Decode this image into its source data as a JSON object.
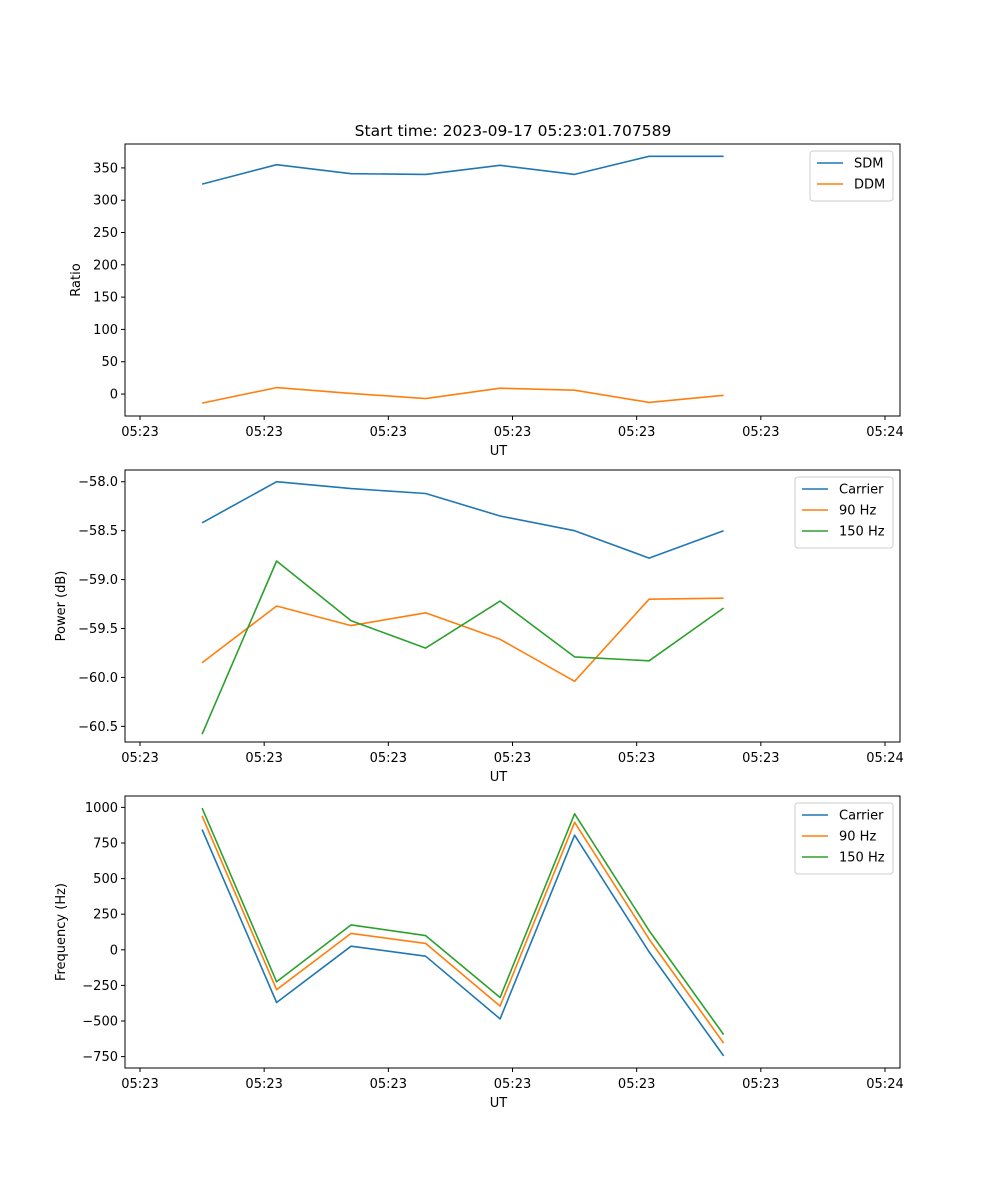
{
  "figure": {
    "title": "Start time: 2023-09-17 05:23:01.707589"
  },
  "colors": {
    "blue": "#1f77b4",
    "orange": "#ff7f0e",
    "green": "#2ca02c"
  },
  "chart_data": [
    {
      "type": "line",
      "ylabel": "Ratio",
      "xlabel": "UT",
      "x": [
        0.5,
        1.1,
        1.7,
        2.3,
        2.9,
        3.5,
        4.1,
        4.7
      ],
      "xlim": [
        0.0,
        6.0
      ],
      "xticks": [
        0,
        1,
        2,
        3,
        4,
        5,
        6
      ],
      "xtick_labels": [
        "05:23",
        "05:23",
        "05:23",
        "05:23",
        "05:23",
        "05:23",
        "05:24"
      ],
      "ylim": [
        -34,
        387
      ],
      "yticks": [
        0,
        50,
        100,
        150,
        200,
        250,
        300,
        350
      ],
      "ytick_labels": [
        "0",
        "50",
        "100",
        "150",
        "200",
        "250",
        "300",
        "350"
      ],
      "legend_position": "top-right",
      "series": [
        {
          "name": "SDM",
          "color": "#1f77b4",
          "values": [
            325,
            355,
            341,
            340,
            354,
            340,
            368,
            368
          ]
        },
        {
          "name": "DDM",
          "color": "#ff7f0e",
          "values": [
            -14,
            10,
            1,
            -7,
            9,
            6,
            -13,
            -2
          ]
        }
      ]
    },
    {
      "type": "line",
      "ylabel": "Power (dB)",
      "xlabel": "UT",
      "x": [
        0.5,
        1.1,
        1.7,
        2.3,
        2.9,
        3.5,
        4.1,
        4.7
      ],
      "xlim": [
        0.0,
        6.0
      ],
      "xticks": [
        0,
        1,
        2,
        3,
        4,
        5,
        6
      ],
      "xtick_labels": [
        "05:23",
        "05:23",
        "05:23",
        "05:23",
        "05:23",
        "05:23",
        "05:24"
      ],
      "ylim": [
        -60.66,
        -57.88
      ],
      "yticks": [
        -60.5,
        -60.0,
        -59.5,
        -59.0,
        -58.5,
        -58.0
      ],
      "ytick_labels": [
        "−60.5",
        "−60.0",
        "−59.5",
        "−59.0",
        "−58.5",
        "−58.0"
      ],
      "legend_position": "top-right",
      "series": [
        {
          "name": "Carrier",
          "color": "#1f77b4",
          "values": [
            -58.42,
            -58.0,
            -58.07,
            -58.12,
            -58.35,
            -58.5,
            -58.78,
            -58.5
          ]
        },
        {
          "name": "90 Hz",
          "color": "#ff7f0e",
          "values": [
            -59.85,
            -59.27,
            -59.47,
            -59.34,
            -59.61,
            -60.04,
            -59.2,
            -59.19
          ]
        },
        {
          "name": "150 Hz",
          "color": "#2ca02c",
          "values": [
            -60.58,
            -58.81,
            -59.42,
            -59.7,
            -59.22,
            -59.79,
            -59.83,
            -59.29
          ]
        }
      ]
    },
    {
      "type": "line",
      "ylabel": "Frequency (Hz)",
      "xlabel": "UT",
      "x": [
        0.5,
        1.1,
        1.7,
        2.3,
        2.9,
        3.5,
        4.1,
        4.7
      ],
      "xlim": [
        0.0,
        6.0
      ],
      "xticks": [
        0,
        1,
        2,
        3,
        4,
        5,
        6
      ],
      "xtick_labels": [
        "05:23",
        "05:23",
        "05:23",
        "05:23",
        "05:23",
        "05:23",
        "05:24"
      ],
      "ylim": [
        -830,
        1080
      ],
      "yticks": [
        -750,
        -500,
        -250,
        0,
        250,
        500,
        750,
        1000
      ],
      "ytick_labels": [
        "−750",
        "−500",
        "−250",
        "0",
        "250",
        "500",
        "750",
        "1000"
      ],
      "legend_position": "top-right",
      "series": [
        {
          "name": "Carrier",
          "color": "#1f77b4",
          "values": [
            845,
            -370,
            25,
            -45,
            -485,
            805,
            -15,
            -745
          ]
        },
        {
          "name": "90 Hz",
          "color": "#ff7f0e",
          "values": [
            940,
            -280,
            115,
            45,
            -395,
            895,
            75,
            -655
          ]
        },
        {
          "name": "150 Hz",
          "color": "#2ca02c",
          "values": [
            995,
            -225,
            175,
            100,
            -335,
            955,
            135,
            -595
          ]
        }
      ]
    }
  ]
}
